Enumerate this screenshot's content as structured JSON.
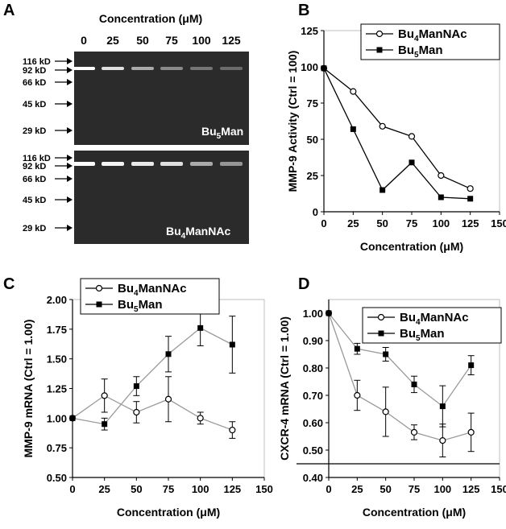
{
  "panels": {
    "A": {
      "letter": "A",
      "concentration_title": "Concentration (μM)",
      "lane_labels": [
        "0",
        "25",
        "50",
        "75",
        "100",
        "125"
      ],
      "markers": [
        "116 kD",
        "92 kD",
        "66 kD",
        "45 kD",
        "29 kD"
      ],
      "gel_top_name": "Bu",
      "gel_top_sub": "5",
      "gel_top_suffix": "Man",
      "gel_bottom_name": "Bu",
      "gel_bottom_sub": "4",
      "gel_bottom_suffix": "ManNAc"
    },
    "B": {
      "letter": "B"
    },
    "C": {
      "letter": "C"
    },
    "D": {
      "letter": "D"
    }
  },
  "legend": {
    "s1_prefix": "Bu",
    "s1_sub": "4",
    "s1_suffix": "ManNAc",
    "s2_prefix": "Bu",
    "s2_sub": "5",
    "s2_suffix": "Man"
  },
  "chart_data": [
    {
      "panel": "B",
      "type": "line",
      "xlabel": "Concentration (μM)",
      "ylabel": "MMP-9 Activity (Ctrl = 100)",
      "xlim": [
        0,
        150
      ],
      "ylim": [
        0,
        125
      ],
      "xticks": [
        "0",
        "25",
        "50",
        "75",
        "100",
        "125",
        "150"
      ],
      "yticks": [
        "0",
        "25",
        "50",
        "75",
        "100",
        "125"
      ],
      "legend_position": "top-right",
      "series": [
        {
          "name": "Bu4ManNAc",
          "marker": "open-circle",
          "x": [
            0,
            25,
            50,
            75,
            100,
            125
          ],
          "y": [
            99,
            83,
            59,
            52,
            25,
            16
          ]
        },
        {
          "name": "Bu5Man",
          "marker": "filled-square",
          "x": [
            0,
            25,
            50,
            75,
            100,
            125
          ],
          "y": [
            99,
            57,
            15,
            34,
            10,
            9
          ]
        }
      ]
    },
    {
      "panel": "C",
      "type": "line",
      "xlabel": "Concentration (μM)",
      "ylabel": "MMP-9 mRNA (Ctrl = 1.00)",
      "xlim": [
        0,
        150
      ],
      "ylim": [
        0.5,
        2.0
      ],
      "xticks": [
        "0",
        "25",
        "50",
        "75",
        "100",
        "125",
        "150"
      ],
      "yticks": [
        "0.50",
        "0.75",
        "1.00",
        "1.25",
        "1.50",
        "1.75",
        "2.00"
      ],
      "legend_position": "top-left",
      "series": [
        {
          "name": "Bu4ManNAc",
          "marker": "open-circle",
          "x": [
            0,
            25,
            50,
            75,
            100,
            125
          ],
          "y": [
            1.0,
            1.19,
            1.05,
            1.16,
            1.0,
            0.9
          ],
          "err": [
            0.0,
            0.14,
            0.09,
            0.19,
            0.05,
            0.07
          ]
        },
        {
          "name": "Bu5Man",
          "marker": "filled-square",
          "x": [
            0,
            25,
            50,
            75,
            100,
            125
          ],
          "y": [
            1.0,
            0.95,
            1.27,
            1.54,
            1.76,
            1.62
          ],
          "err": [
            0.0,
            0.05,
            0.08,
            0.15,
            0.15,
            0.24
          ]
        }
      ]
    },
    {
      "panel": "D",
      "type": "line",
      "xlabel": "Concentration (μM)",
      "ylabel": "CXCR-4 mRNA (Ctrl = 1.00)",
      "xlim": [
        0,
        150
      ],
      "ylim": [
        0.4,
        1.05
      ],
      "xticks": [
        "0",
        "25",
        "50",
        "75",
        "100",
        "125",
        "150"
      ],
      "yticks": [
        "0.40",
        "0.50",
        "0.60",
        "0.70",
        "0.80",
        "0.90",
        "1.00"
      ],
      "legend_position": "top-right",
      "reference_line_y": 0.45,
      "series": [
        {
          "name": "Bu4ManNAc",
          "marker": "open-circle",
          "x": [
            0,
            25,
            50,
            75,
            100,
            125
          ],
          "y": [
            1.0,
            0.7,
            0.64,
            0.565,
            0.535,
            0.565
          ],
          "err": [
            0.0,
            0.055,
            0.09,
            0.027,
            0.06,
            0.07
          ]
        },
        {
          "name": "Bu5Man",
          "marker": "filled-square",
          "x": [
            0,
            25,
            50,
            75,
            100,
            125
          ],
          "y": [
            1.0,
            0.87,
            0.85,
            0.74,
            0.66,
            0.81
          ],
          "err": [
            0.0,
            0.02,
            0.025,
            0.03,
            0.075,
            0.035
          ]
        }
      ]
    }
  ]
}
